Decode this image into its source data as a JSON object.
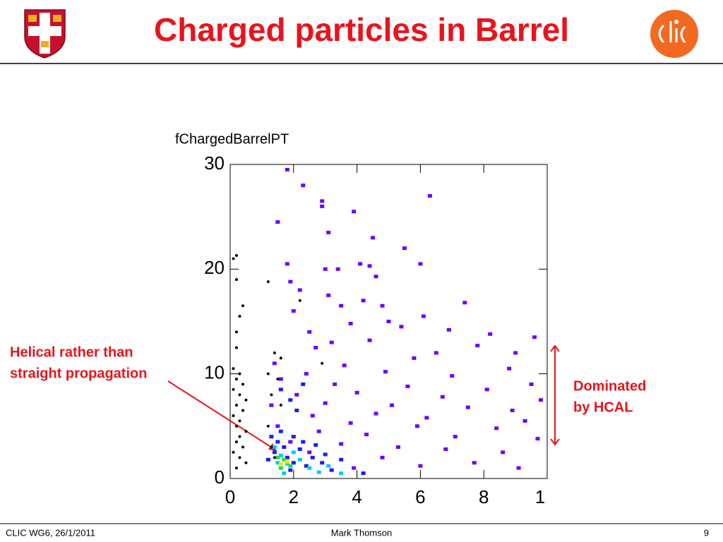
{
  "header": {
    "title": "Charged particles in Barrel"
  },
  "footer": {
    "left": "CLIC WG6, 26/1/2011",
    "center": "Mark Thomson",
    "right": "9"
  },
  "chart_data": {
    "type": "scatter",
    "title": "fChargedBarrelPT",
    "annotations": [
      {
        "lines": [
          "Helical rather than",
          "straight propagation"
        ]
      },
      {
        "lines": [
          "Dominated",
          "by HCAL"
        ]
      }
    ],
    "xlim": [
      0,
      10
    ],
    "xticks": [
      0,
      2,
      4,
      6,
      8,
      {
        "value": 10,
        "label": "1"
      }
    ],
    "ylim": [
      0,
      30
    ],
    "yticks": [
      0,
      10,
      20,
      30
    ],
    "series": [
      {
        "color": "#6a00ff",
        "marker": "cell",
        "x": [
          1.8,
          2.3,
          6.3,
          2.9,
          2.9,
          3.9,
          1.5,
          3.1,
          4.5,
          5.5,
          1.8,
          3.0,
          3.4,
          4.1,
          4.4,
          6.0,
          4.6,
          1.9,
          2.2,
          3.1,
          4.2,
          4.8,
          7.4,
          2.0,
          3.5,
          6.1,
          5.0,
          2.5,
          3.8,
          5.4,
          6.9,
          8.2,
          9.6,
          3.2,
          4.4,
          7.8,
          2.7,
          6.5,
          9.0,
          5.8,
          1.4,
          3.6,
          8.8,
          2.4,
          4.9,
          7.0,
          9.5,
          1.6,
          3.3,
          5.6,
          8.1,
          2.1,
          4.0,
          6.7,
          9.8,
          1.3,
          3.0,
          5.1,
          7.5,
          8.9,
          2.6,
          4.6,
          6.2,
          9.3,
          1.5,
          3.8,
          5.9,
          8.4,
          2.8,
          4.3,
          7.1,
          9.7,
          1.9,
          3.5,
          5.3,
          6.8,
          8.6,
          2.5,
          4.8,
          7.7,
          9.1,
          6.0,
          3.9
        ],
        "values": [
          29.5,
          28,
          27,
          26.5,
          26,
          25.5,
          24.5,
          23.5,
          23,
          22,
          20.5,
          20,
          20,
          20.5,
          20.3,
          20.5,
          19.3,
          18.8,
          18,
          17.5,
          17,
          16.5,
          16.8,
          16,
          16.5,
          15.5,
          15,
          14,
          14.8,
          14.5,
          14.2,
          13.8,
          13.5,
          13,
          13.2,
          12.7,
          12.5,
          12,
          12,
          11.5,
          11,
          10.8,
          10.5,
          10,
          10.2,
          9.8,
          9,
          9.5,
          9,
          8.8,
          8.5,
          8,
          8.2,
          7.8,
          7.5,
          7,
          7.2,
          7,
          6.8,
          6.5,
          6,
          6.2,
          5.8,
          5.5,
          5,
          5.3,
          5,
          4.8,
          4.5,
          4.2,
          4,
          3.8,
          3.5,
          3.3,
          3,
          2.8,
          2.5,
          2.5,
          2,
          1.5,
          1,
          1.2,
          1
        ]
      },
      {
        "color": "#1a1aff",
        "marker": "cell",
        "x": [
          1.3,
          1.5,
          1.7,
          1.4,
          1.8,
          2.0,
          2.2,
          2.4,
          2.6,
          1.6,
          2.0,
          2.9,
          3.2,
          3.0,
          2.3,
          3.5,
          1.2,
          1.9,
          2.7,
          4.2,
          1.6,
          1.9,
          2.1,
          2.3
        ],
        "values": [
          4,
          3.5,
          3,
          2.5,
          2,
          1.5,
          2.8,
          1.2,
          2,
          4.5,
          4,
          1.5,
          0.8,
          2.3,
          3.5,
          1.8,
          1.8,
          0.8,
          3.2,
          0.5,
          8.5,
          7.5,
          6.5,
          9
        ]
      },
      {
        "color": "#00c8ff",
        "marker": "cell",
        "x": [
          1.4,
          1.6,
          1.8,
          2.2,
          2.5,
          2.8,
          3.1,
          3.5,
          1.5,
          2.0,
          1.7
        ],
        "values": [
          3,
          2.2,
          1.4,
          1.8,
          1,
          0.6,
          1.2,
          0.5,
          1.5,
          2.5,
          0.5
        ]
      },
      {
        "color": "#22dd44",
        "marker": "cell",
        "x": [
          1.5,
          1.7,
          1.9,
          1.6
        ],
        "values": [
          2,
          1.8,
          1.2,
          1
        ]
      },
      {
        "color": "#ffe000",
        "marker": "cell",
        "x": [
          1.8,
          1.6
        ],
        "values": [
          1.6,
          1.4
        ]
      },
      {
        "color": "#000000",
        "marker": "dot",
        "x": [
          0.1,
          0.2,
          0.2,
          0.4,
          0.3,
          0.2,
          0.2,
          0.1,
          0.3,
          0.2,
          0.4,
          0.1,
          0.3,
          0.5,
          0.2,
          0.4,
          0.1,
          0.3,
          0.2,
          0.5,
          0.3,
          0.2,
          0.4,
          0.1,
          0.3,
          0.5,
          0.2,
          1.2,
          1.4,
          1.6,
          1.2,
          1.5,
          1.3,
          1.6,
          1.2,
          1.3,
          1.4,
          2.2,
          2.9
        ],
        "values": [
          21,
          21.3,
          19,
          16.5,
          15.5,
          14,
          12.5,
          10.5,
          10,
          9.5,
          9,
          8.5,
          8,
          7.5,
          7,
          6.5,
          6,
          5.5,
          5,
          4.5,
          4,
          3.5,
          3,
          2.5,
          2,
          1.5,
          1,
          18.8,
          12,
          11.5,
          10,
          9.5,
          8,
          7,
          5,
          3,
          2,
          17,
          11
        ]
      }
    ]
  }
}
